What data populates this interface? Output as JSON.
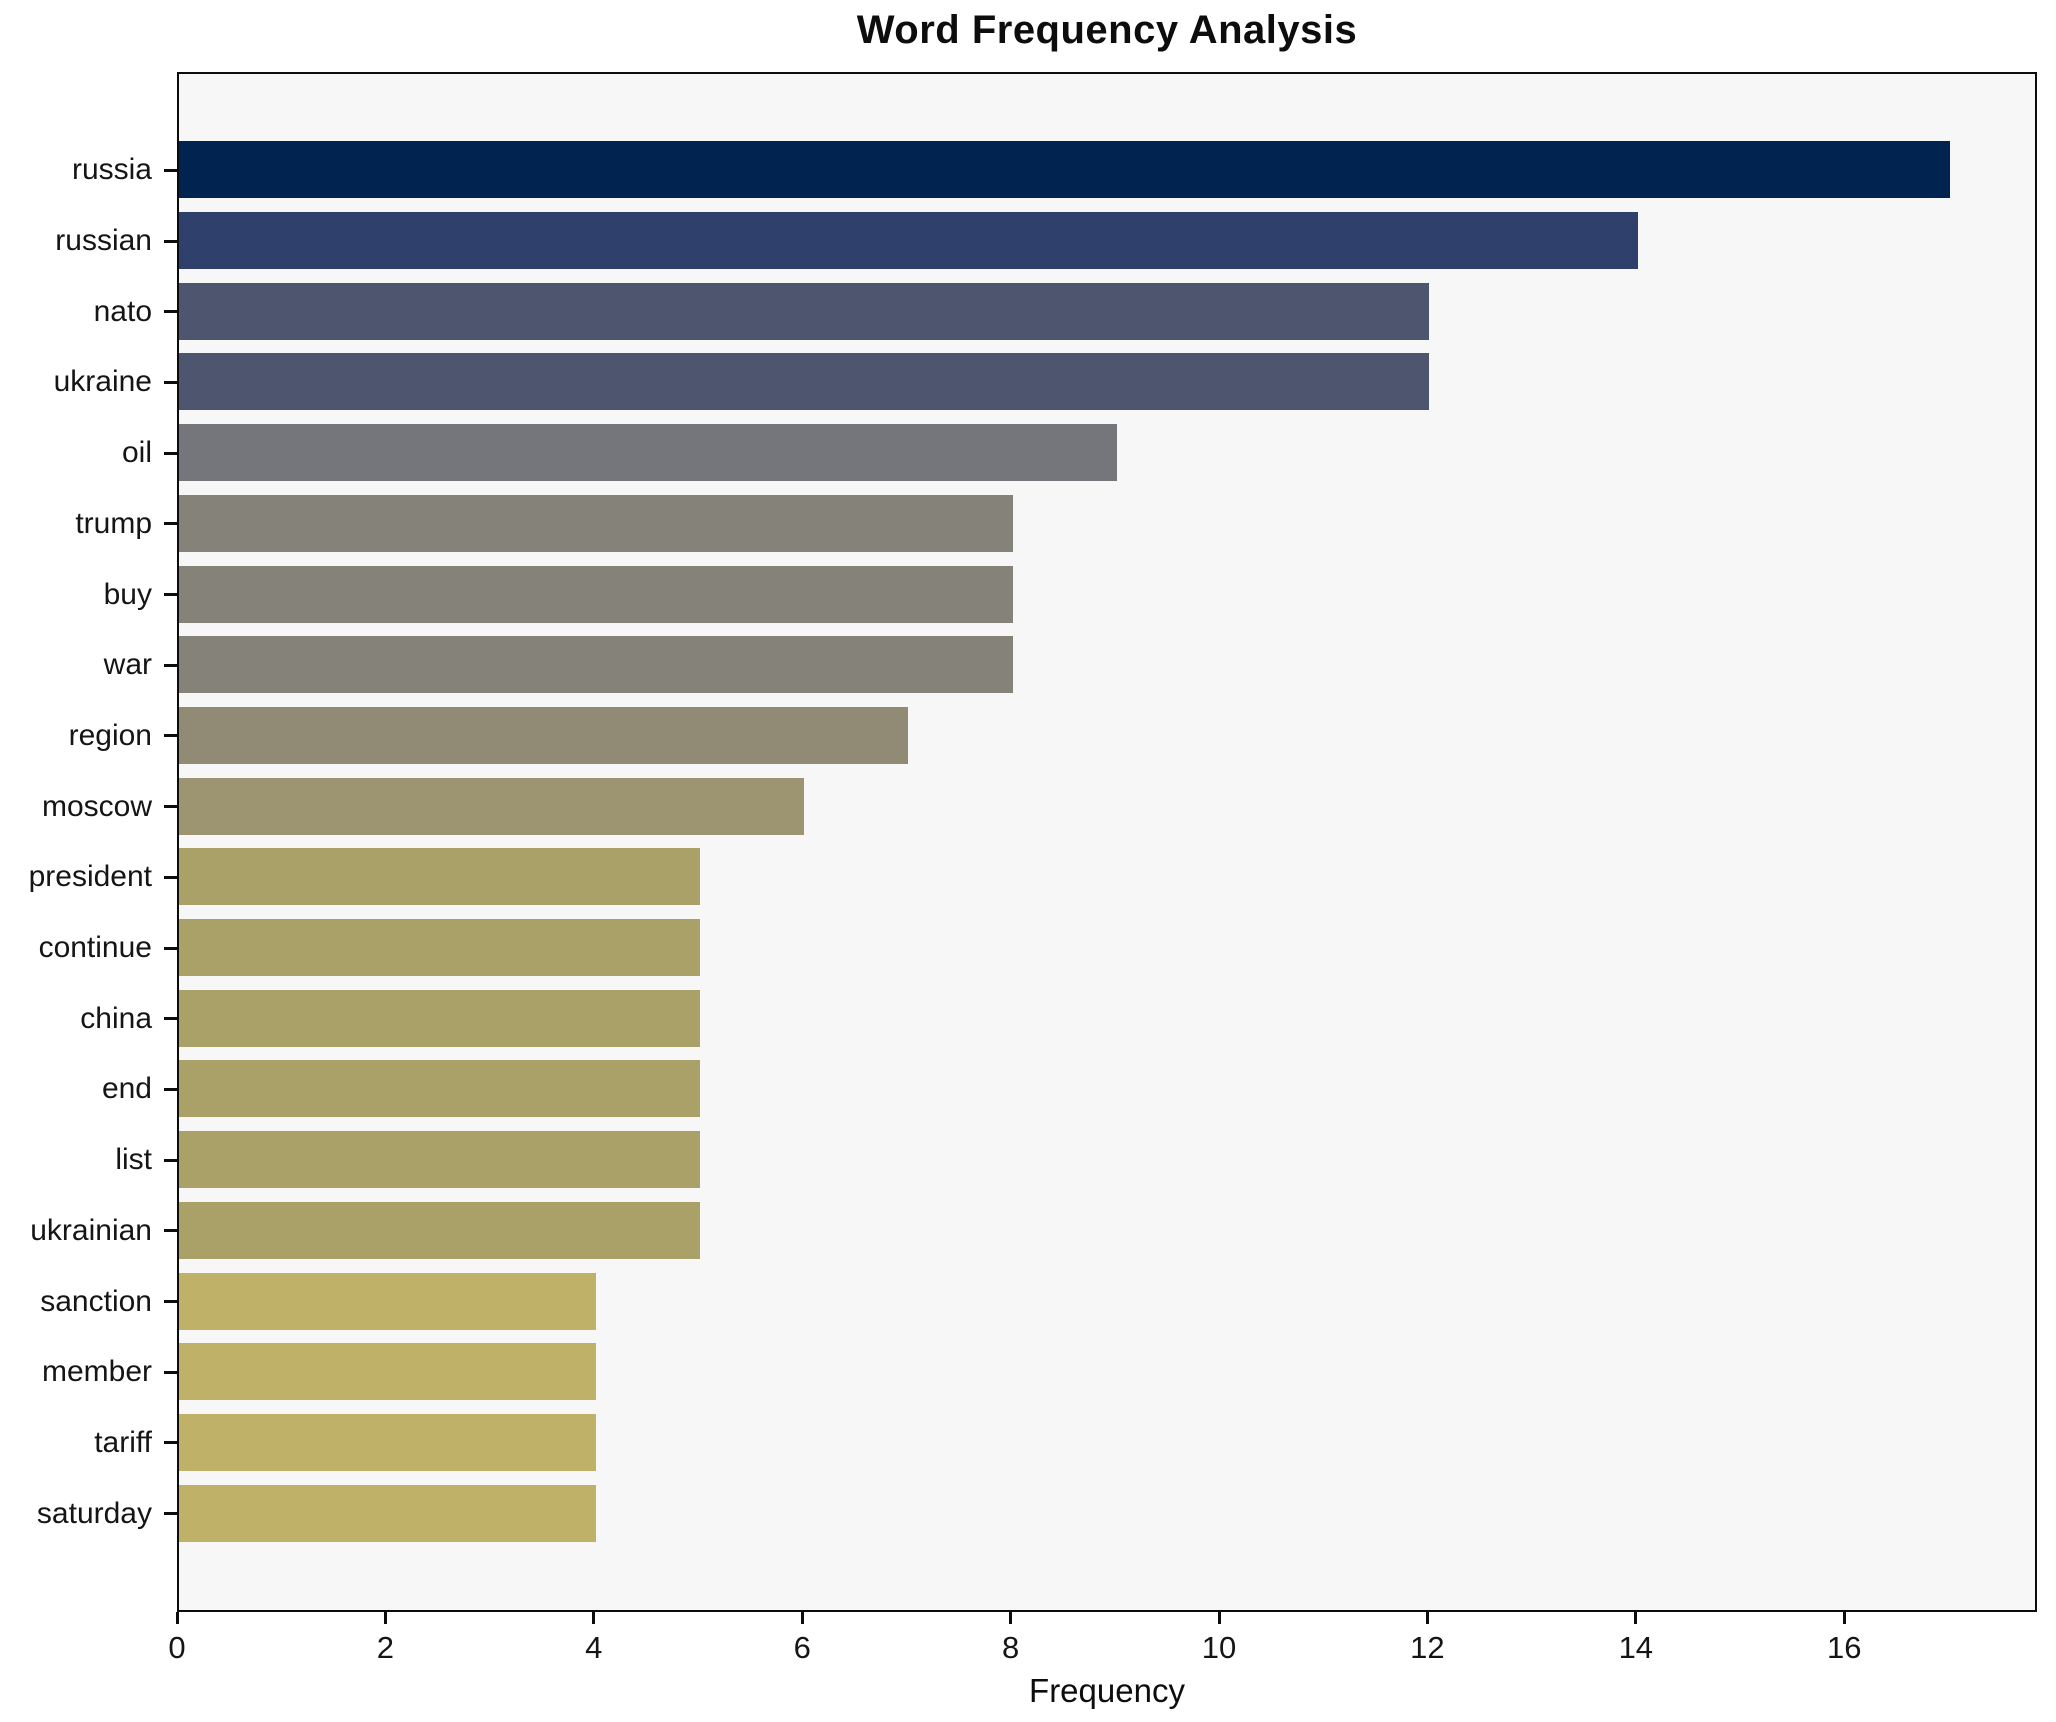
{
  "title": "Word Frequency Analysis",
  "x_axis_label": "Frequency",
  "chart_data": {
    "type": "bar",
    "orientation": "horizontal",
    "title": "Word Frequency Analysis",
    "xlabel": "Frequency",
    "ylabel": "",
    "grid": false,
    "legend": null,
    "plot_background": "#f7f7f7",
    "figure_background": "#ffffff",
    "xlim": [
      0,
      17.85
    ],
    "xticks": [
      0,
      2,
      4,
      6,
      8,
      10,
      12,
      14,
      16
    ],
    "categories": [
      "russia",
      "russian",
      "nato",
      "ukraine",
      "oil",
      "trump",
      "buy",
      "war",
      "region",
      "moscow",
      "president",
      "continue",
      "china",
      "end",
      "list",
      "ukrainian",
      "sanction",
      "member",
      "tariff",
      "saturday"
    ],
    "values": [
      17,
      14,
      12,
      12,
      9,
      8,
      8,
      8,
      7,
      6,
      5,
      5,
      5,
      5,
      5,
      5,
      4,
      4,
      4,
      4
    ],
    "bar_colors": [
      "#00234f",
      "#2f406c",
      "#4d566e",
      "#4d566e",
      "#75767b",
      "#85827a",
      "#85827a",
      "#85827a",
      "#918b76",
      "#9d9571",
      "#a9a168",
      "#a9a168",
      "#a9a168",
      "#a9a168",
      "#a9a168",
      "#a9a168",
      "#c0b169",
      "#c0b169",
      "#c0b169",
      "#c0b169"
    ]
  }
}
